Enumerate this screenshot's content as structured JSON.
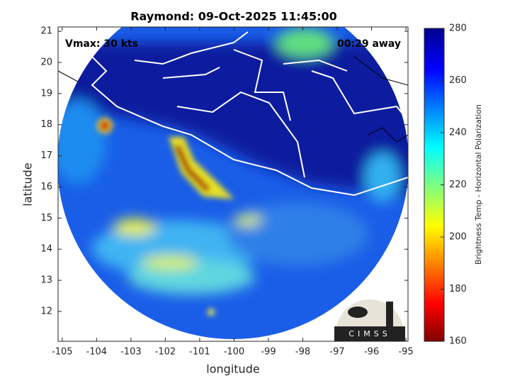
{
  "chart_data": {
    "type": "map",
    "title": "Raymond: 09-Oct-2025 11:45:00",
    "annotations": [
      "Vmax: 30 kts",
      "00:29 away"
    ],
    "xlabel": "longitude",
    "ylabel": "latitude",
    "xlim": [
      -105.12,
      -94.94
    ],
    "xticks": [
      -105,
      -104,
      -103,
      -102,
      -101,
      -100,
      -99,
      -98,
      -97,
      -96,
      -95
    ],
    "ylim": [
      11.04,
      21.14
    ],
    "yticks": [
      12,
      13,
      14,
      15,
      16,
      17,
      18,
      19,
      20,
      21
    ],
    "colorbar": {
      "label": "Brightness Temp - Horizontal Polarization",
      "lim": [
        160,
        280
      ],
      "ticks": [
        160,
        180,
        200,
        220,
        240,
        260,
        280
      ]
    },
    "logo": "CIMSS"
  }
}
